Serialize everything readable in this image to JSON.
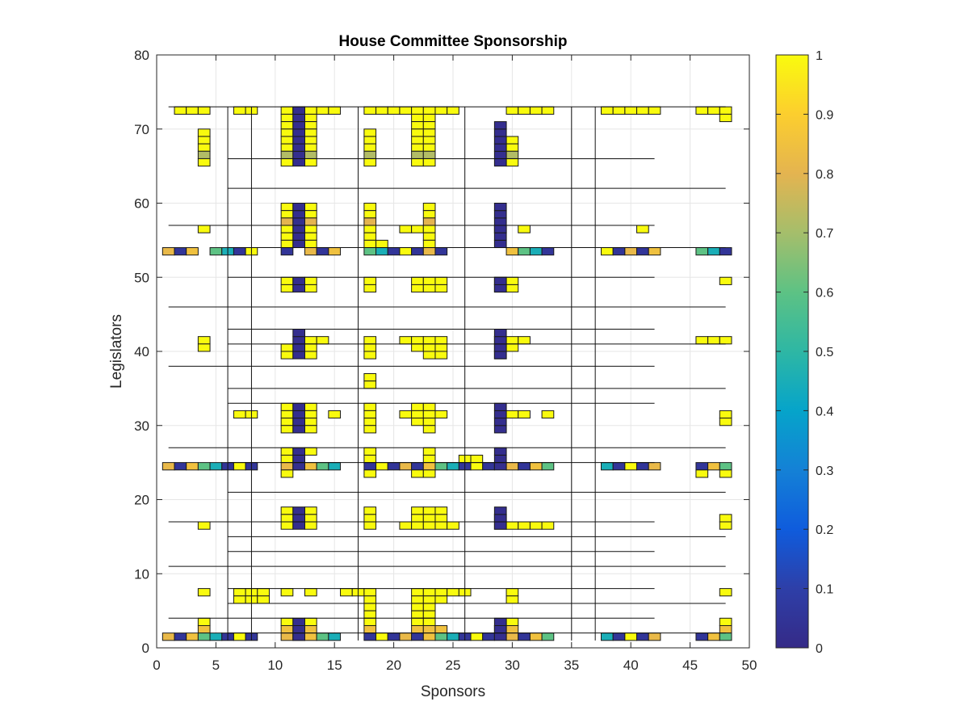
{
  "chart_data": {
    "type": "heatmap",
    "title": "House Committee Sponsorship",
    "xlabel": "Sponsors",
    "ylabel": "Legislators",
    "xlim": [
      0,
      50
    ],
    "ylim": [
      0,
      80
    ],
    "xticks": [
      0,
      5,
      10,
      15,
      20,
      25,
      30,
      35,
      40,
      45,
      50
    ],
    "yticks": [
      0,
      10,
      20,
      30,
      40,
      50,
      60,
      70,
      80
    ],
    "grid": true,
    "colormap": "parula",
    "colorbar": {
      "range": [
        0,
        1
      ],
      "ticks": [
        0,
        0.1,
        0.2,
        0.3,
        0.4,
        0.5,
        0.6,
        0.7,
        0.8,
        0.9,
        1
      ],
      "tick_labels": [
        "0",
        "0.1",
        "0.2",
        "0.3",
        "0.4",
        "0.5",
        "0.6",
        "0.7",
        "0.8",
        "0.9",
        "1"
      ],
      "placement": "right"
    },
    "cell_groups": [
      {
        "y": 72,
        "x_cells": [
          1,
          2,
          3,
          6,
          7,
          12,
          13,
          14,
          17,
          18,
          19,
          20,
          21,
          22,
          23,
          24,
          29,
          30,
          31,
          32,
          37,
          38,
          39,
          40,
          41,
          45,
          46,
          47
        ],
        "value": 1
      },
      {
        "y": 72,
        "x_cells": [
          10,
          11
        ],
        "value": 1
      },
      {
        "y": 71,
        "x_cells": [
          10,
          12,
          21,
          22,
          47
        ],
        "value": 1
      },
      {
        "y": 70,
        "x_cells": [
          10,
          12,
          21,
          22
        ],
        "value": 1
      },
      {
        "y": 69,
        "x_cells": [
          3,
          10,
          12,
          17,
          21,
          22
        ],
        "value": 1
      },
      {
        "y": 68,
        "x_cells": [
          3,
          10,
          12,
          17,
          21,
          22,
          29
        ],
        "value": 1
      },
      {
        "y": 67,
        "x_cells": [
          3,
          10,
          12,
          17,
          21,
          22,
          29
        ],
        "value": 1
      },
      {
        "y": 66,
        "x_cells": [
          3,
          10,
          12,
          17,
          21,
          22,
          29
        ],
        "value": 0.72
      },
      {
        "y": 65,
        "x_cells": [
          3,
          10,
          12,
          17,
          21,
          22,
          29
        ],
        "value": 1
      },
      {
        "y": 59,
        "x_cells": [
          10,
          12,
          17,
          22
        ],
        "value": 1
      },
      {
        "y": 58,
        "x_cells": [
          10,
          12,
          17,
          22
        ],
        "value": 1
      },
      {
        "y": 57,
        "x_cells": [
          10,
          12,
          17,
          22
        ],
        "value": 0.8
      },
      {
        "y": 56,
        "x_cells": [
          3,
          10,
          12,
          17,
          20,
          21,
          22,
          28,
          30,
          40
        ],
        "value": 1
      },
      {
        "y": 55,
        "x_cells": [
          10,
          12,
          17,
          22
        ],
        "value": 1
      },
      {
        "y": 54,
        "x_cells": [
          10,
          12,
          17,
          18,
          22
        ],
        "value": 1
      },
      {
        "y": 53,
        "x_cells": [
          0,
          1,
          2,
          4,
          5,
          6,
          7,
          10,
          12,
          13,
          14,
          17,
          18,
          19,
          20,
          21,
          22,
          23,
          29,
          30,
          31,
          32,
          37,
          38,
          39,
          40,
          41,
          45,
          46,
          47
        ],
        "value": 0.05
      },
      {
        "y": 49,
        "x_cells": [
          10,
          12,
          17,
          21,
          22,
          23,
          28,
          29,
          47
        ],
        "value": 1
      },
      {
        "y": 48,
        "x_cells": [
          10,
          12,
          17,
          21,
          22,
          23,
          28,
          29
        ],
        "value": 1
      },
      {
        "y": 41,
        "x_cells": [
          3,
          12,
          13,
          17,
          20,
          21,
          22,
          23,
          28,
          29,
          30,
          45,
          46,
          47
        ],
        "value": 1
      },
      {
        "y": 40,
        "x_cells": [
          3,
          10,
          12,
          17,
          21,
          22,
          23,
          28,
          29
        ],
        "value": 1
      },
      {
        "y": 39,
        "x_cells": [
          10,
          12,
          17,
          22,
          23,
          28
        ],
        "value": 1
      },
      {
        "y": 36,
        "x_cells": [
          17
        ],
        "value": 1
      },
      {
        "y": 35,
        "x_cells": [
          17
        ],
        "value": 1
      },
      {
        "y": 32,
        "x_cells": [
          10,
          12,
          17,
          21,
          22
        ],
        "value": 1
      },
      {
        "y": 31,
        "x_cells": [
          6,
          7,
          10,
          12,
          14,
          17,
          20,
          21,
          22,
          23,
          29,
          30,
          32,
          47
        ],
        "value": 1
      },
      {
        "y": 30,
        "x_cells": [
          10,
          12,
          17,
          21,
          22,
          47
        ],
        "value": 1
      },
      {
        "y": 29,
        "x_cells": [
          10,
          12,
          17,
          22
        ],
        "value": 1
      },
      {
        "y": 26,
        "x_cells": [
          10,
          12,
          17,
          22
        ],
        "value": 1
      },
      {
        "y": 25,
        "x_cells": [
          10,
          17,
          22,
          25,
          26
        ],
        "value": 1
      },
      {
        "y": 24,
        "x_cells": [
          0,
          1,
          2,
          3,
          4,
          5,
          6,
          7,
          10,
          11,
          12,
          13,
          14,
          17,
          18,
          19,
          20,
          21,
          22,
          23,
          24,
          25,
          26,
          27,
          29,
          30,
          31,
          32,
          37,
          38,
          39,
          40,
          41,
          45,
          46,
          47
        ],
        "value": 0.05
      },
      {
        "y": 23,
        "x_cells": [
          10,
          17,
          21,
          22,
          45,
          47
        ],
        "value": 1
      },
      {
        "y": 18,
        "x_cells": [
          10,
          12,
          17,
          21,
          22,
          23
        ],
        "value": 1
      },
      {
        "y": 17,
        "x_cells": [
          10,
          12,
          17,
          21,
          22,
          23,
          28,
          47
        ],
        "value": 1
      },
      {
        "y": 16,
        "x_cells": [
          3,
          10,
          12,
          17,
          20,
          21,
          22,
          23,
          24,
          28,
          29,
          30,
          31,
          32,
          47
        ],
        "value": 1
      },
      {
        "y": 7,
        "x_cells": [
          3,
          6,
          7,
          8,
          10,
          12,
          15,
          16,
          17,
          21,
          22,
          23,
          24,
          25,
          29,
          47
        ],
        "value": 1
      },
      {
        "y": 6,
        "x_cells": [
          6,
          7,
          8,
          17,
          21,
          22,
          23,
          29
        ],
        "value": 1
      },
      {
        "y": 5,
        "x_cells": [
          17,
          21,
          22
        ],
        "value": 1
      },
      {
        "y": 4,
        "x_cells": [
          17,
          21,
          22
        ],
        "value": 1
      },
      {
        "y": 3,
        "x_cells": [
          3,
          10,
          12,
          17,
          21,
          22,
          29,
          47
        ],
        "value": 1
      },
      {
        "y": 2,
        "x_cells": [
          3,
          10,
          12,
          17,
          21,
          22,
          23,
          28,
          29,
          47
        ],
        "value": 0.85
      },
      {
        "y": 1,
        "x_cells": [
          0,
          1,
          2,
          3,
          4,
          5,
          6,
          7,
          10,
          11,
          12,
          13,
          14,
          17,
          18,
          19,
          20,
          21,
          22,
          23,
          24,
          25,
          26,
          27,
          29,
          30,
          31,
          32,
          37,
          38,
          39,
          40,
          41,
          45,
          46,
          47
        ],
        "value": 0.05
      }
    ]
  }
}
